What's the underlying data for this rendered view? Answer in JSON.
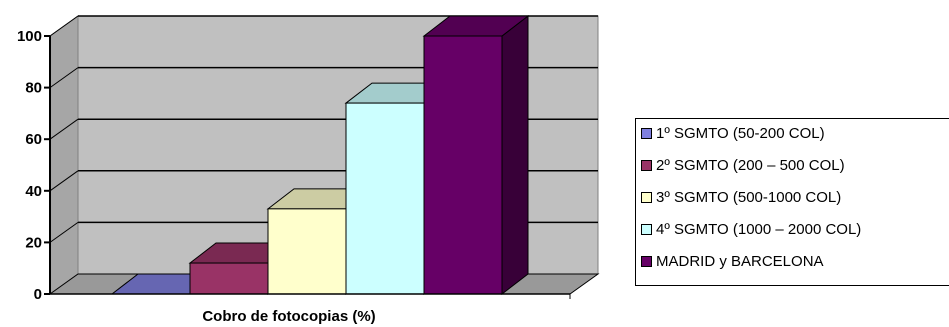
{
  "chart_data": {
    "type": "bar",
    "xlabel": "Cobro de fotocopias (%)",
    "ylim": [
      0,
      100
    ],
    "yticks": [
      "0",
      "20",
      "40",
      "60",
      "80",
      "100"
    ],
    "grid": true,
    "legend_position": "right",
    "series": [
      {
        "name": "1º SGMTO (50-200 COL)",
        "value": 0,
        "color": "#7f7fdf"
      },
      {
        "name": "2º SGMTO (200 – 500 COL)",
        "value": 12,
        "color": "#993366"
      },
      {
        "name": "3º SGMTO (500-1000 COL)",
        "value": 33,
        "color": "#ffffcc"
      },
      {
        "name": "4º SGMTO (1000 – 2000 COL)",
        "value": 74,
        "color": "#ccffff"
      },
      {
        "name": "MADRID y BARCELONA",
        "value": 100,
        "color": "#660066"
      }
    ],
    "colors": {
      "plot_wall": "#c0c0c0",
      "floor": "#999999",
      "text": "#000000"
    }
  }
}
